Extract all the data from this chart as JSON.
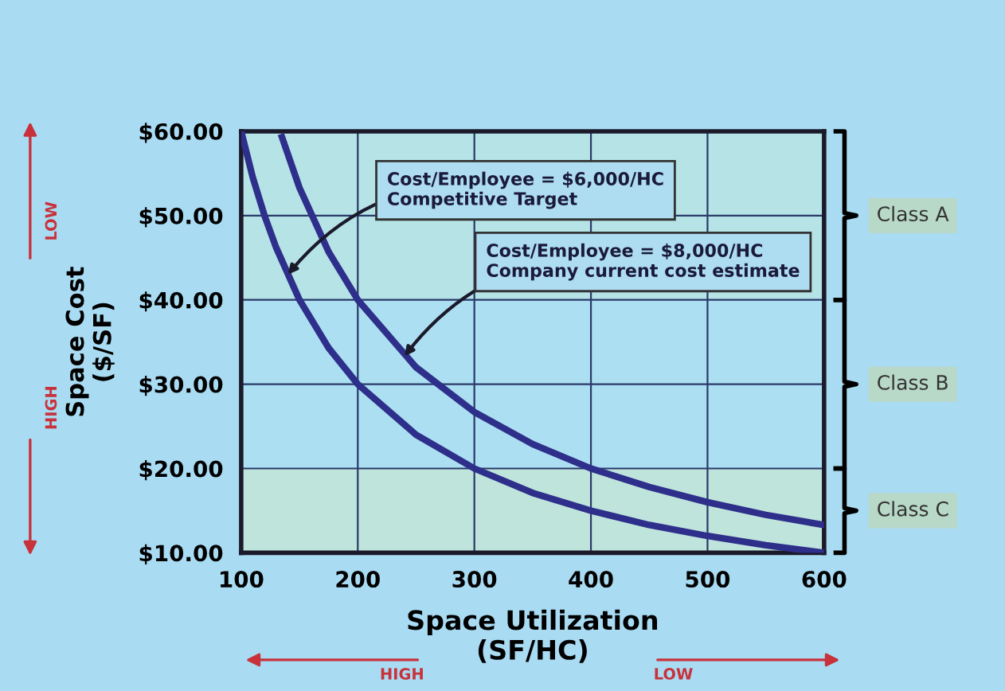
{
  "chart_data": {
    "type": "line",
    "xlabel": "Space Utilization\n(SF/HC)",
    "ylabel": "Space Cost\n($/SF)",
    "xlim": [
      100,
      600
    ],
    "xticks": [
      100,
      200,
      300,
      400,
      500,
      600
    ],
    "ylim": [
      10,
      60
    ],
    "yticks": [
      {
        "value": 10,
        "label": "$10.00"
      },
      {
        "value": 20,
        "label": "$20.00"
      },
      {
        "value": 30,
        "label": "$30.00"
      },
      {
        "value": 40,
        "label": "$40.00"
      },
      {
        "value": 50,
        "label": "$50.00"
      },
      {
        "value": 60,
        "label": "$60.00"
      }
    ],
    "grid": true,
    "marker": "none",
    "line_style": "solid",
    "series": [
      {
        "color": "#2e2f8a",
        "x": [
          100,
          110,
          120,
          130,
          150,
          175,
          200,
          250,
          300,
          350,
          400,
          450,
          500,
          550,
          600
        ],
        "values": [
          60,
          54.5,
          50,
          46.2,
          40,
          34.3,
          30,
          24,
          20,
          17.1,
          15,
          13.3,
          12,
          10.9,
          10
        ]
      },
      {
        "color": "#2e2f8a",
        "x": [
          135,
          150,
          175,
          200,
          250,
          300,
          350,
          400,
          450,
          500,
          550,
          600
        ],
        "values": [
          59.3,
          53.3,
          45.7,
          40,
          32,
          26.7,
          22.9,
          20,
          17.8,
          16,
          14.5,
          13.3
        ]
      }
    ],
    "bands": [
      {
        "axis": "y",
        "from": 40,
        "to": 60,
        "label": "Class A",
        "color": "#b5e3e6"
      },
      {
        "axis": "y",
        "from": 20,
        "to": 40,
        "label": "Class B",
        "color": "#acdff1"
      },
      {
        "axis": "y",
        "from": 10,
        "to": 20,
        "label": "Class C",
        "color": "#bfe4dc"
      }
    ],
    "annotations": [
      {
        "text": "Cost/Employee = $6,000/HC\nCompetitive Target",
        "x": 140,
        "y": 43
      },
      {
        "text": "Cost/Employee = $8,000/HC\nCompany current cost estimate",
        "x": 240,
        "y": 33.3
      },
      "LOW",
      "HIGH",
      "HIGH",
      "LOW"
    ]
  }
}
